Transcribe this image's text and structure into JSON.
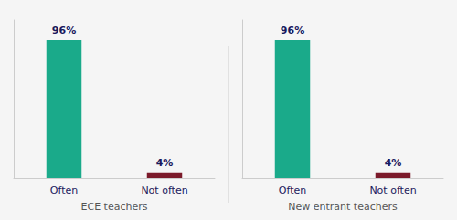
{
  "chart_data": [
    {
      "type": "bar",
      "xlabel": "ECE teachers",
      "categories": [
        "Often",
        "Not often"
      ],
      "values": [
        96,
        4
      ],
      "value_labels": [
        "96%",
        "4%"
      ],
      "colors": [
        "#1aaa8a",
        "#7b1a2a"
      ],
      "ylim": [
        0,
        110
      ],
      "data_labels": true,
      "tick_labels": "x",
      "grid": false
    },
    {
      "type": "bar",
      "xlabel": "New entrant teachers",
      "categories": [
        "Often",
        "Not often"
      ],
      "values": [
        96,
        4
      ],
      "value_labels": [
        "96%",
        "4%"
      ],
      "colors": [
        "#1aaa8a",
        "#7b1a2a"
      ],
      "ylim": [
        0,
        110
      ],
      "data_labels": true,
      "tick_labels": "x",
      "grid": false
    }
  ]
}
